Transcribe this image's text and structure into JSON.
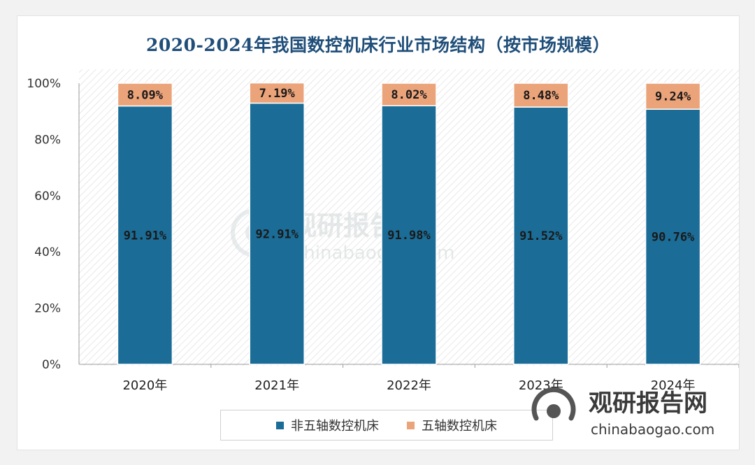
{
  "title": "2020-2024年我国数控机床行业市场结构（按市场规模）",
  "colors": {
    "series1": "#1b6c96",
    "series2": "#eba37a",
    "title": "#1f4e79"
  },
  "watermark": {
    "name": "观研报告网",
    "url": "chinabaogao.com"
  },
  "chart_data": {
    "type": "bar",
    "stacked": true,
    "title": "2020-2024年我国数控机床行业市场结构（按市场规模）",
    "categories": [
      "2020年",
      "2021年",
      "2022年",
      "2023年",
      "2024年"
    ],
    "series": [
      {
        "name": "非五轴数控机床",
        "values": [
          91.91,
          92.91,
          91.98,
          91.52,
          90.76
        ],
        "labels": [
          "91.91%",
          "92.91%",
          "91.98%",
          "91.52%",
          "90.76%"
        ]
      },
      {
        "name": "五轴数控机床",
        "values": [
          8.09,
          7.19,
          8.02,
          8.48,
          9.24
        ],
        "labels": [
          "8.09%",
          "7.19%",
          "8.02%",
          "8.48%",
          "9.24%"
        ]
      }
    ],
    "ylim": [
      0,
      100
    ],
    "yticks": [
      "0%",
      "20%",
      "40%",
      "60%",
      "80%",
      "100%"
    ],
    "xlabel": "",
    "ylabel": "",
    "legend_position": "bottom"
  }
}
